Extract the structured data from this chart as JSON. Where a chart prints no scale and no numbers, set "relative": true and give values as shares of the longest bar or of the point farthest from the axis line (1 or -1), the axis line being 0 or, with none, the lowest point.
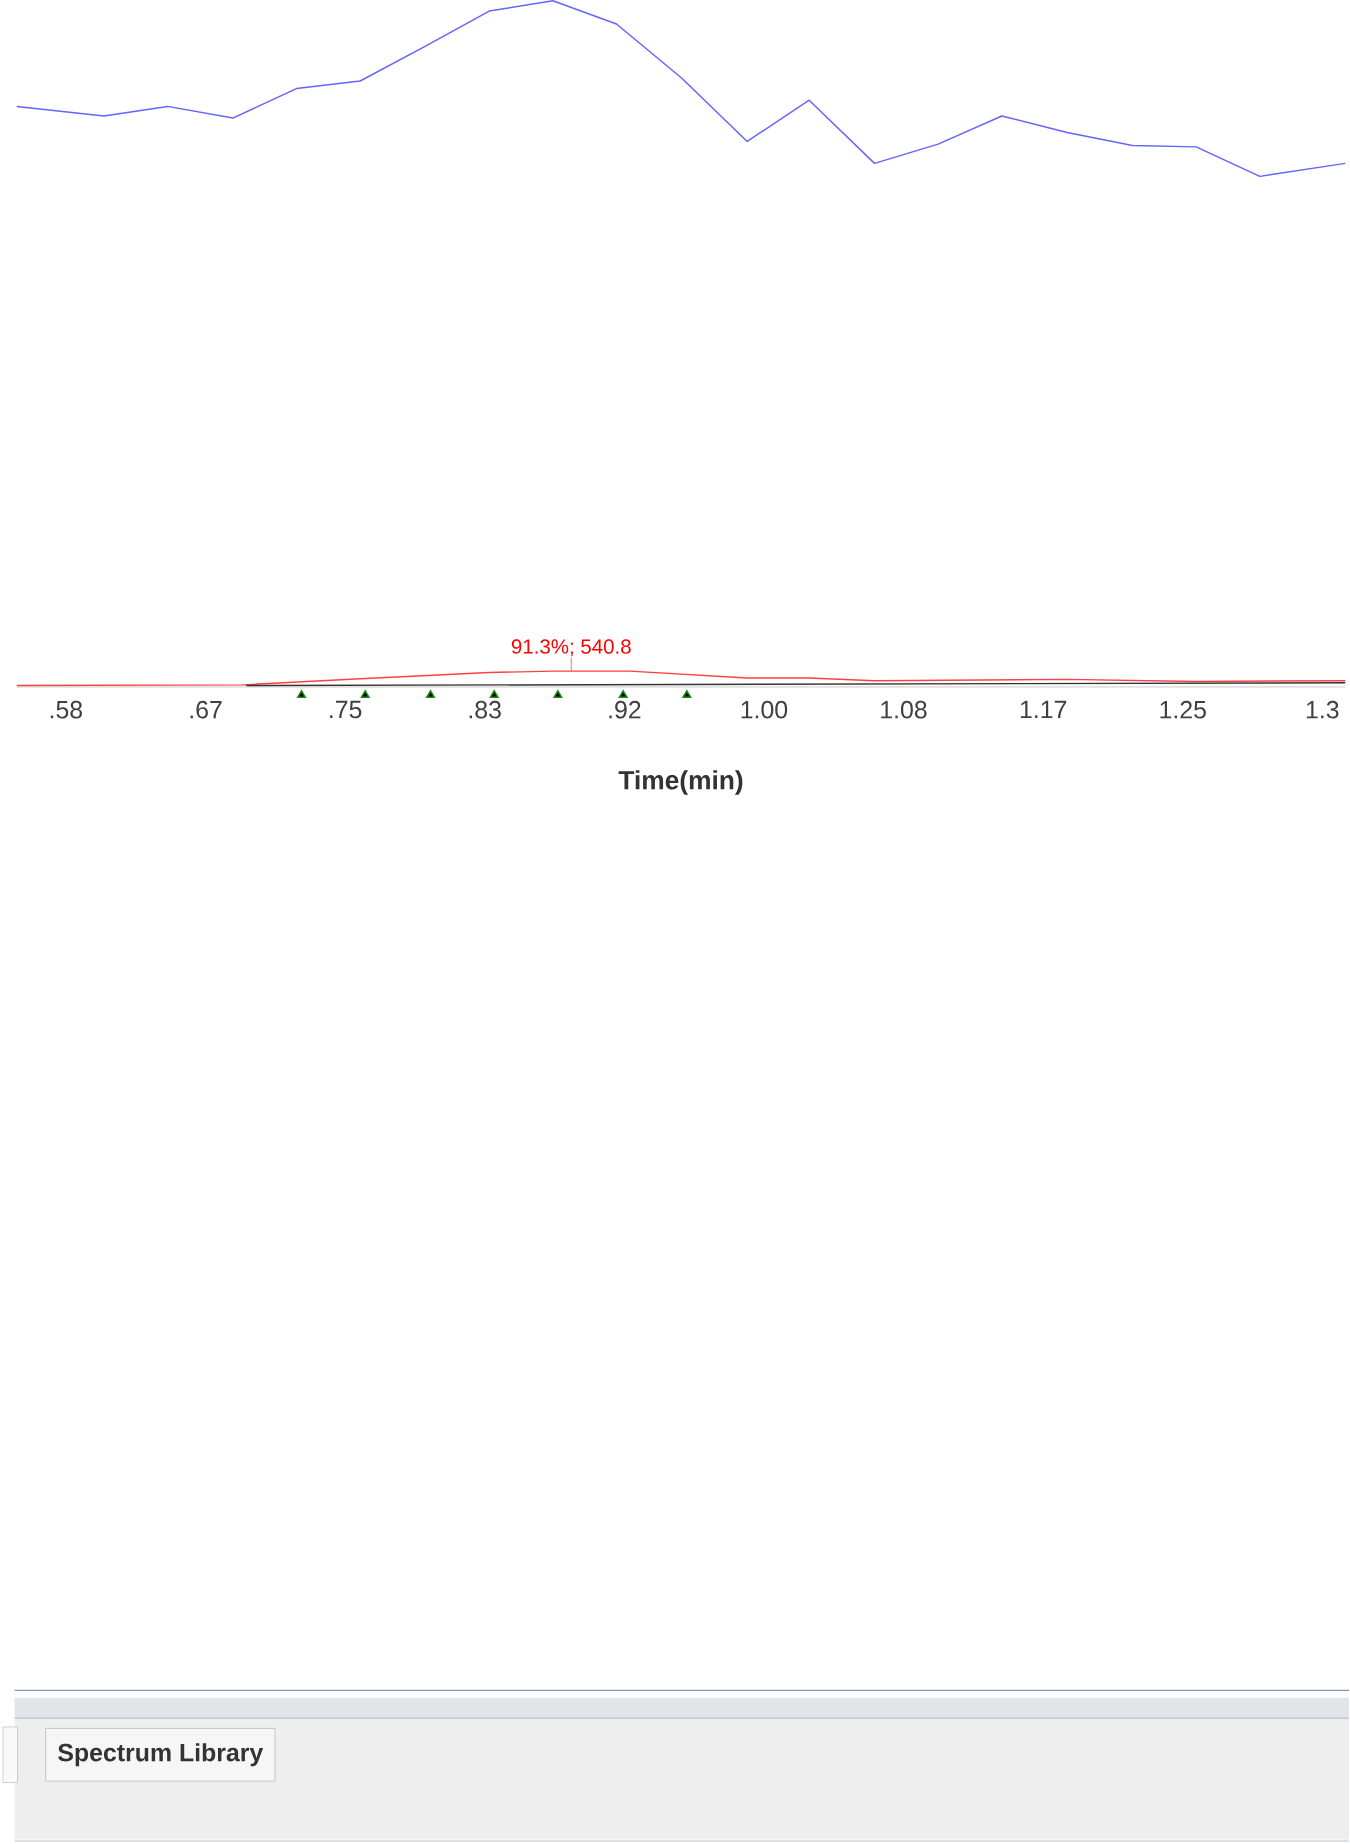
{
  "chart_data": {
    "type": "line",
    "relative": true,
    "xlabel": "Time(min)",
    "xlim": [
      0.554,
      1.347
    ],
    "xticks": [
      {
        "value": 0.5833,
        "label": ".58"
      },
      {
        "value": 0.6667,
        "label": ".67"
      },
      {
        "value": 0.75,
        "label": ".75"
      },
      {
        "value": 0.8333,
        "label": ".83"
      },
      {
        "value": 0.9167,
        "label": ".92"
      },
      {
        "value": 1.0,
        "label": "1.00"
      },
      {
        "value": 1.0833,
        "label": "1.08"
      },
      {
        "value": 1.1667,
        "label": "1.17"
      },
      {
        "value": 1.25,
        "label": "1.25"
      },
      {
        "value": 1.3333,
        "label": "1.3"
      }
    ],
    "series": [
      {
        "color": "#6464ff",
        "x": [
          0.554,
          0.606,
          0.644,
          0.683,
          0.721,
          0.759,
          0.798,
          0.836,
          0.874,
          0.912,
          0.951,
          0.99,
          1.027,
          1.066,
          1.104,
          1.142,
          1.181,
          1.22,
          1.258,
          1.296,
          1.347
        ],
        "values": [
          0.846,
          0.832,
          0.846,
          0.829,
          0.872,
          0.883,
          0.934,
          0.985,
          1,
          0.966,
          0.887,
          0.795,
          0.855,
          0.763,
          0.791,
          0.832,
          0.808,
          0.789,
          0.787,
          0.744,
          0.763
        ]
      },
      {
        "color": "#ff4040",
        "x": [
          0.554,
          0.689,
          0.759,
          0.836,
          0.874,
          0.92,
          0.99,
          1.027,
          1.066,
          1.181,
          1.258,
          1.347
        ],
        "values": [
          0.002,
          0.003,
          0.012,
          0.021,
          0.023,
          0.023,
          0.013,
          0.013,
          0.009,
          0.011,
          0.008,
          0.009
        ]
      },
      {
        "color": "#333333",
        "x": [
          0.691,
          1.347
        ],
        "values": [
          0.002,
          0.006
        ]
      },
      {
        "type": "scatter",
        "marker": "triangle",
        "color": "#1a8a1a",
        "x": [
          0.724,
          0.762,
          0.801,
          0.839,
          0.877,
          0.916,
          0.954
        ],
        "values": [
          -0.012,
          -0.012,
          -0.012,
          -0.012,
          -0.012,
          -0.012,
          -0.012
        ]
      }
    ],
    "line_style": "solid",
    "annotations": [
      {
        "text": "91.3%; 540.8",
        "x": 0.885,
        "y": 0.023
      },
      "Spectrum Library"
    ]
  }
}
